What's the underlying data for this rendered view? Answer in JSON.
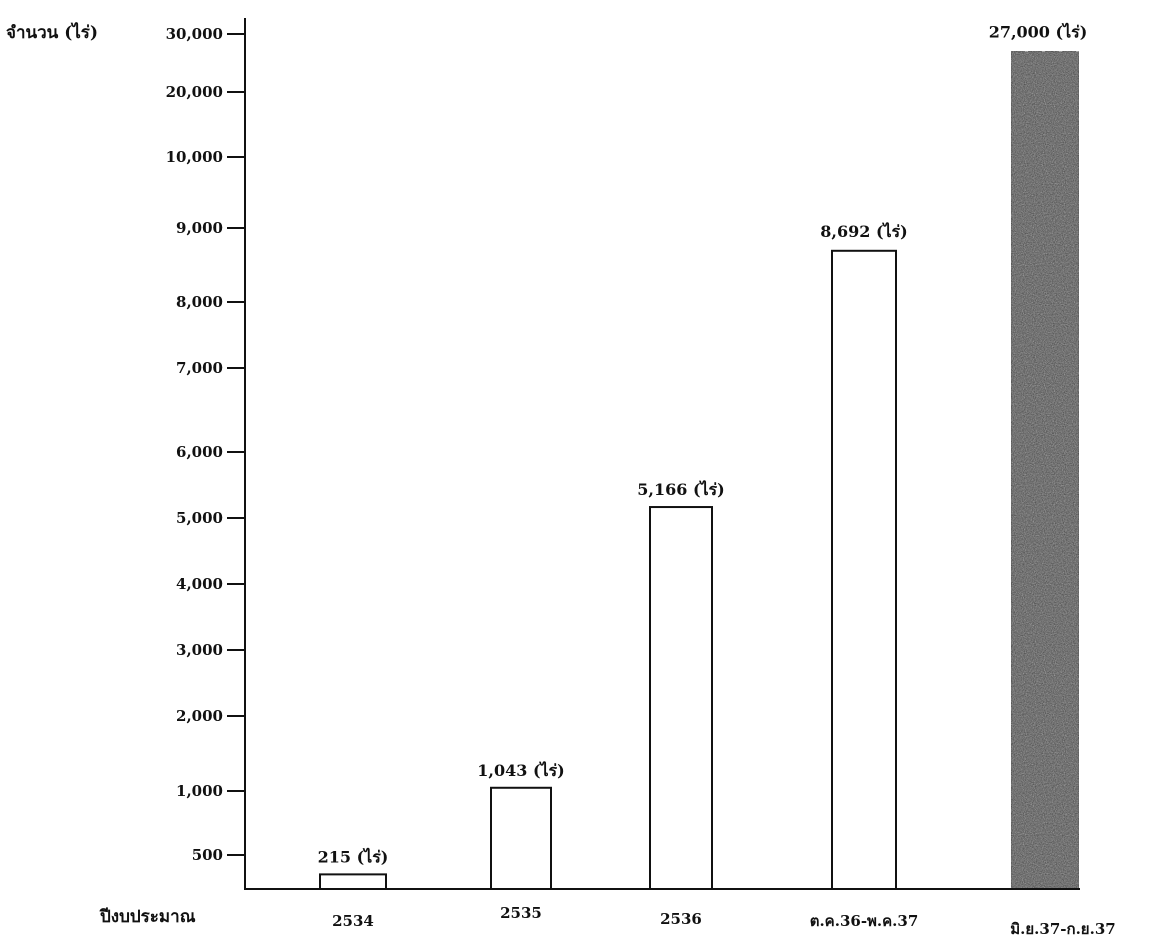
{
  "chart_data": {
    "type": "bar",
    "ylabel": "จำนวน (ไร่)",
    "xlabel": "ปีงบประมาณ",
    "categories": [
      "2534",
      "2535",
      "2536",
      "ต.ค.36-พ.ค.37",
      "มิ.ย.37-ก.ย.37"
    ],
    "values": [
      215,
      1043,
      5166,
      8692,
      27000
    ],
    "data_labels": [
      "215 (ไร่)",
      "1,043 (ไร่)",
      "5,166 (ไร่)",
      "8,692 (ไร่)",
      "27,000 (ไร่)"
    ],
    "bar_styles": [
      "outline",
      "outline",
      "outline",
      "outline",
      "dark-textured"
    ],
    "y_ticks": [
      {
        "value": 500,
        "label": "500"
      },
      {
        "value": 1000,
        "label": "1,000"
      },
      {
        "value": 2000,
        "label": "2,000"
      },
      {
        "value": 3000,
        "label": "3,000"
      },
      {
        "value": 4000,
        "label": "4,000"
      },
      {
        "value": 5000,
        "label": "5,000"
      },
      {
        "value": 6000,
        "label": "6,000"
      },
      {
        "value": 7000,
        "label": "7,000"
      },
      {
        "value": 8000,
        "label": "8,000"
      },
      {
        "value": 9000,
        "label": "9,000"
      },
      {
        "value": 10000,
        "label": "10,000"
      },
      {
        "value": 20000,
        "label": "20,000"
      },
      {
        "value": 30000,
        "label": "30,000"
      }
    ],
    "y_scale": "broken (linear to 9,000, compressed above)",
    "ylim": [
      0,
      30000
    ],
    "grid": false,
    "legend": "none",
    "colors": {
      "outline_bar": "#ffffff",
      "highlight_bar": "#3a3a3a",
      "stroke": "#111111"
    }
  }
}
